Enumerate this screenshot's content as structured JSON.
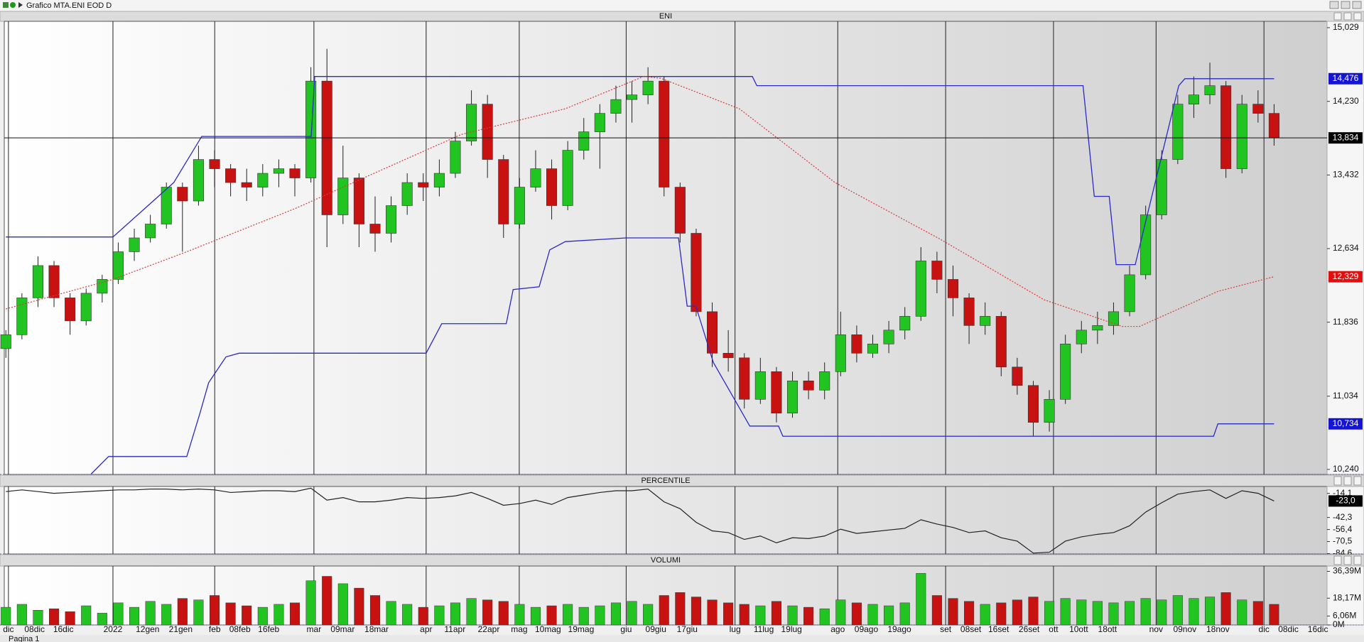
{
  "window_title": "Grafico MTA.ENI EOD D",
  "status": "Pagina 1",
  "chart_data": [
    {
      "type": "candlestick",
      "title": "ENI",
      "up_color": "#22c422",
      "down_color": "#c81212",
      "ylim": [
        10.186,
        15.098
      ],
      "yticks": [
        {
          "value": 15.029,
          "label": "15,029"
        },
        {
          "value": 14.23,
          "label": "14,230"
        },
        {
          "value": 13.432,
          "label": "13,432"
        },
        {
          "value": 12.634,
          "label": "12,634"
        },
        {
          "value": 11.836,
          "label": "11,836"
        },
        {
          "value": 11.034,
          "label": "11,034"
        },
        {
          "value": 10.24,
          "label": "10,240"
        }
      ],
      "candles": [
        [
          11.55,
          11.75,
          11.45,
          11.7
        ],
        [
          11.7,
          12.15,
          11.65,
          12.1
        ],
        [
          12.1,
          12.55,
          12.0,
          12.45
        ],
        [
          12.45,
          12.5,
          12.0,
          12.1
        ],
        [
          12.1,
          12.15,
          11.7,
          11.85
        ],
        [
          11.85,
          12.2,
          11.8,
          12.15
        ],
        [
          12.15,
          12.35,
          12.05,
          12.3
        ],
        [
          12.3,
          12.7,
          12.25,
          12.6
        ],
        [
          12.6,
          12.85,
          12.5,
          12.75
        ],
        [
          12.75,
          13.0,
          12.7,
          12.9
        ],
        [
          12.9,
          13.35,
          12.85,
          13.3
        ],
        [
          13.3,
          13.35,
          12.6,
          13.15
        ],
        [
          13.15,
          13.75,
          13.1,
          13.6
        ],
        [
          13.6,
          13.7,
          13.3,
          13.5
        ],
        [
          13.5,
          13.55,
          13.2,
          13.35
        ],
        [
          13.35,
          13.5,
          13.15,
          13.3
        ],
        [
          13.3,
          13.55,
          13.2,
          13.45
        ],
        [
          13.45,
          13.6,
          13.3,
          13.5
        ],
        [
          13.5,
          13.55,
          13.2,
          13.4
        ],
        [
          13.4,
          14.6,
          13.35,
          14.45
        ],
        [
          14.45,
          14.8,
          12.65,
          13.0
        ],
        [
          13.0,
          13.75,
          12.9,
          13.4
        ],
        [
          13.4,
          13.45,
          12.65,
          12.9
        ],
        [
          12.9,
          13.2,
          12.6,
          12.8
        ],
        [
          12.8,
          13.2,
          12.7,
          13.1
        ],
        [
          13.1,
          13.45,
          13.0,
          13.35
        ],
        [
          13.35,
          13.45,
          13.15,
          13.3
        ],
        [
          13.3,
          13.6,
          13.2,
          13.45
        ],
        [
          13.45,
          13.9,
          13.4,
          13.8
        ],
        [
          13.8,
          14.35,
          13.75,
          14.2
        ],
        [
          14.2,
          14.3,
          13.4,
          13.6
        ],
        [
          13.6,
          13.65,
          12.75,
          12.9
        ],
        [
          12.9,
          13.4,
          12.85,
          13.3
        ],
        [
          13.3,
          13.7,
          13.25,
          13.5
        ],
        [
          13.5,
          13.6,
          12.95,
          13.1
        ],
        [
          13.1,
          13.8,
          13.05,
          13.7
        ],
        [
          13.7,
          14.05,
          13.6,
          13.9
        ],
        [
          13.9,
          14.2,
          13.5,
          14.1
        ],
        [
          14.1,
          14.4,
          14.0,
          14.25
        ],
        [
          14.25,
          14.45,
          14.0,
          14.3
        ],
        [
          14.3,
          14.6,
          14.2,
          14.45
        ],
        [
          14.45,
          14.5,
          13.2,
          13.3
        ],
        [
          13.3,
          13.35,
          12.7,
          12.8
        ],
        [
          12.8,
          12.85,
          11.9,
          11.95
        ],
        [
          11.95,
          12.05,
          11.35,
          11.5
        ],
        [
          11.5,
          11.75,
          11.3,
          11.45
        ],
        [
          11.45,
          11.5,
          10.9,
          11.0
        ],
        [
          11.0,
          11.45,
          10.95,
          11.3
        ],
        [
          11.3,
          11.35,
          10.75,
          10.85
        ],
        [
          10.85,
          11.3,
          10.8,
          11.2
        ],
        [
          11.2,
          11.3,
          11.0,
          11.1
        ],
        [
          11.1,
          11.4,
          11.0,
          11.3
        ],
        [
          11.3,
          11.95,
          11.25,
          11.7
        ],
        [
          11.7,
          11.8,
          11.4,
          11.5
        ],
        [
          11.5,
          11.7,
          11.45,
          11.6
        ],
        [
          11.6,
          11.85,
          11.5,
          11.75
        ],
        [
          11.75,
          12.0,
          11.65,
          11.9
        ],
        [
          11.9,
          12.65,
          11.85,
          12.5
        ],
        [
          12.5,
          12.6,
          12.15,
          12.3
        ],
        [
          12.3,
          12.45,
          11.9,
          12.1
        ],
        [
          12.1,
          12.15,
          11.6,
          11.8
        ],
        [
          11.8,
          12.05,
          11.7,
          11.9
        ],
        [
          11.9,
          11.95,
          11.25,
          11.35
        ],
        [
          11.35,
          11.45,
          11.05,
          11.15
        ],
        [
          11.15,
          11.2,
          10.6,
          10.75
        ],
        [
          10.75,
          11.1,
          10.65,
          11.0
        ],
        [
          11.0,
          11.7,
          10.95,
          11.6
        ],
        [
          11.6,
          11.85,
          11.5,
          11.75
        ],
        [
          11.75,
          11.95,
          11.6,
          11.8
        ],
        [
          11.8,
          12.05,
          11.7,
          11.95
        ],
        [
          11.95,
          12.45,
          11.9,
          12.35
        ],
        [
          12.35,
          13.1,
          12.3,
          13.0
        ],
        [
          13.0,
          13.7,
          12.95,
          13.6
        ],
        [
          13.6,
          14.3,
          13.55,
          14.2
        ],
        [
          14.2,
          14.5,
          14.05,
          14.3
        ],
        [
          14.3,
          14.65,
          14.2,
          14.4
        ],
        [
          14.4,
          14.45,
          13.4,
          13.5
        ],
        [
          13.5,
          14.3,
          13.45,
          14.2
        ],
        [
          14.2,
          14.35,
          14.0,
          14.1
        ],
        [
          14.1,
          14.2,
          13.75,
          13.834
        ]
      ],
      "lines": [
        {
          "color": "#2a2ac8",
          "style": "solid",
          "x": [
            0,
            6.67,
            10.46,
            12.2,
            19.02,
            19.24,
            46.5,
            46.78,
            67.1,
            67.8,
            68.73,
            69.16,
            70.35,
            73.06,
            73.44,
            79
          ],
          "values": [
            12.76,
            12.76,
            13.35,
            13.85,
            13.85,
            14.5,
            14.5,
            14.4,
            14.4,
            13.2,
            13.2,
            12.46,
            12.46,
            14.4,
            14.476,
            14.476
          ]
        },
        {
          "color": "#2a2ac8",
          "style": "solid",
          "x": [
            5.31,
            6.4,
            11.27,
            12.09,
            12.63,
            13.71,
            14.53,
            26.18,
            27.15,
            31.17,
            31.6,
            33.22,
            33.88,
            34.85,
            38.64,
            41.9,
            42.44,
            42.98,
            44.07,
            46.34,
            48.13,
            48.4,
            75.23,
            75.5,
            79
          ],
          "values": [
            10.19,
            10.38,
            10.38,
            10.85,
            11.18,
            11.46,
            11.5,
            11.5,
            11.82,
            11.82,
            12.19,
            12.22,
            12.62,
            12.71,
            12.75,
            12.75,
            12.01,
            12.01,
            11.4,
            10.71,
            10.71,
            10.6,
            10.6,
            10.734,
            10.734
          ]
        },
        {
          "color": "#d83a3a",
          "style": "dotted",
          "x": [
            0,
            6.67,
            11.27,
            18.05,
            22.93,
            28.35,
            34.85,
            39.73,
            40.81,
            45.69,
            51.65,
            58.16,
            64.66,
            69.54,
            70.62,
            75.5,
            79
          ],
          "values": [
            11.98,
            12.3,
            12.6,
            13.07,
            13.45,
            13.87,
            14.15,
            14.5,
            14.48,
            14.15,
            13.35,
            12.74,
            12.08,
            11.79,
            11.79,
            12.17,
            12.329
          ]
        }
      ],
      "price_markers": [
        {
          "value": 14.476,
          "label": "14,476",
          "color": "#1414d2"
        },
        {
          "value": 13.834,
          "label": "13,834",
          "color": "#000000",
          "line": true
        },
        {
          "value": 12.329,
          "label": "12,329",
          "color": "#e01010"
        },
        {
          "value": 10.734,
          "label": "10,734",
          "color": "#1414d2"
        }
      ]
    },
    {
      "type": "line",
      "title": "PERCENTILE",
      "color": "#222222",
      "ylim": [
        -85,
        -6
      ],
      "yticks": [
        {
          "value": -14.1,
          "label": "-14,1"
        },
        {
          "value": -42.3,
          "label": "-42,3"
        },
        {
          "value": -56.4,
          "label": "-56,4"
        },
        {
          "value": -70.5,
          "label": "-70,5"
        },
        {
          "value": -84.6,
          "label": "-84,6"
        }
      ],
      "values": [
        -12,
        -10,
        -12,
        -14,
        -13,
        -12,
        -11,
        -10,
        -10,
        -9,
        -9,
        -10,
        -9,
        -10,
        -13,
        -12,
        -11,
        -11,
        -12,
        -8,
        -22,
        -19,
        -24,
        -24,
        -22,
        -19,
        -20,
        -19,
        -17,
        -13,
        -20,
        -28,
        -26,
        -22,
        -27,
        -19,
        -16,
        -13,
        -11,
        -11,
        -9,
        -24,
        -32,
        -48,
        -58,
        -60,
        -68,
        -64,
        -72,
        -66,
        -67,
        -64,
        -56,
        -61,
        -59,
        -57,
        -55,
        -45,
        -50,
        -54,
        -60,
        -58,
        -66,
        -70,
        -84,
        -83,
        -70,
        -65,
        -62,
        -60,
        -52,
        -36,
        -25,
        -15,
        -12,
        -10,
        -20,
        -11,
        -14,
        -23
      ],
      "price_markers": [
        {
          "value": -23,
          "label": "-23,0",
          "color": "#000000"
        }
      ]
    },
    {
      "type": "bar",
      "title": "VOLUMI",
      "ylim": [
        0,
        40
      ],
      "yticks": [
        {
          "value": 36.39,
          "label": "36,39M"
        },
        {
          "value": 18.17,
          "label": "18,17M"
        },
        {
          "value": 6.06,
          "label": "6,06M"
        },
        {
          "value": 0,
          "label": "0M"
        }
      ],
      "values": [
        12,
        14,
        10,
        11,
        9,
        13,
        8,
        15,
        12,
        16,
        14,
        18,
        17,
        20,
        15,
        13,
        12,
        14,
        15,
        30,
        33,
        28,
        25,
        20,
        16,
        14,
        12,
        13,
        15,
        18,
        17,
        16,
        14,
        12,
        13,
        14,
        12,
        13,
        15,
        16,
        14,
        20,
        22,
        19,
        17,
        15,
        14,
        13,
        16,
        13,
        12,
        11,
        17,
        15,
        14,
        13,
        15,
        35,
        20,
        18,
        16,
        14,
        15,
        17,
        19,
        16,
        18,
        17,
        16,
        15,
        16,
        18,
        17,
        20,
        18,
        19,
        22,
        17,
        16,
        14
      ],
      "xlim": [
        -0.1,
        82.3
      ],
      "xticks": [
        {
          "value": 0.16,
          "label": "dic"
        },
        {
          "value": 6.67,
          "label": "2022"
        },
        {
          "value": 13.01,
          "label": "feb"
        },
        {
          "value": 19.19,
          "label": "mar"
        },
        {
          "value": 26.18,
          "label": "apr"
        },
        {
          "value": 31.98,
          "label": "mag"
        },
        {
          "value": 38.64,
          "label": "giu"
        },
        {
          "value": 45.42,
          "label": "lug"
        },
        {
          "value": 51.82,
          "label": "ago"
        },
        {
          "value": 58.54,
          "label": "set"
        },
        {
          "value": 65.26,
          "label": "ott"
        },
        {
          "value": 71.65,
          "label": "nov"
        },
        {
          "value": 78.37,
          "label": "dic"
        }
      ],
      "xminorticks": [
        {
          "value": 1.79,
          "label": "08dic"
        },
        {
          "value": 3.58,
          "label": "16dic"
        },
        {
          "value": 8.83,
          "label": "12gen"
        },
        {
          "value": 10.89,
          "label": "21gen"
        },
        {
          "value": 14.58,
          "label": "08feb"
        },
        {
          "value": 16.37,
          "label": "16feb"
        },
        {
          "value": 20.98,
          "label": "09mar"
        },
        {
          "value": 23.09,
          "label": "18mar"
        },
        {
          "value": 27.97,
          "label": "11apr"
        },
        {
          "value": 30.08,
          "label": "22apr"
        },
        {
          "value": 33.77,
          "label": "10mag"
        },
        {
          "value": 35.83,
          "label": "19mag"
        },
        {
          "value": 40.49,
          "label": "09giu"
        },
        {
          "value": 42.44,
          "label": "17giu"
        },
        {
          "value": 47.21,
          "label": "11lug"
        },
        {
          "value": 48.94,
          "label": "19lug"
        },
        {
          "value": 53.6,
          "label": "09ago"
        },
        {
          "value": 55.66,
          "label": "19ago"
        },
        {
          "value": 60.11,
          "label": "08set"
        },
        {
          "value": 61.84,
          "label": "16set"
        },
        {
          "value": 63.74,
          "label": "26set"
        },
        {
          "value": 66.83,
          "label": "10ott"
        },
        {
          "value": 68.62,
          "label": "18ott"
        },
        {
          "value": 73.44,
          "label": "09nov"
        },
        {
          "value": 75.5,
          "label": "18nov"
        },
        {
          "value": 79.89,
          "label": "08dic"
        },
        {
          "value": 81.73,
          "label": "16dic"
        }
      ]
    }
  ]
}
